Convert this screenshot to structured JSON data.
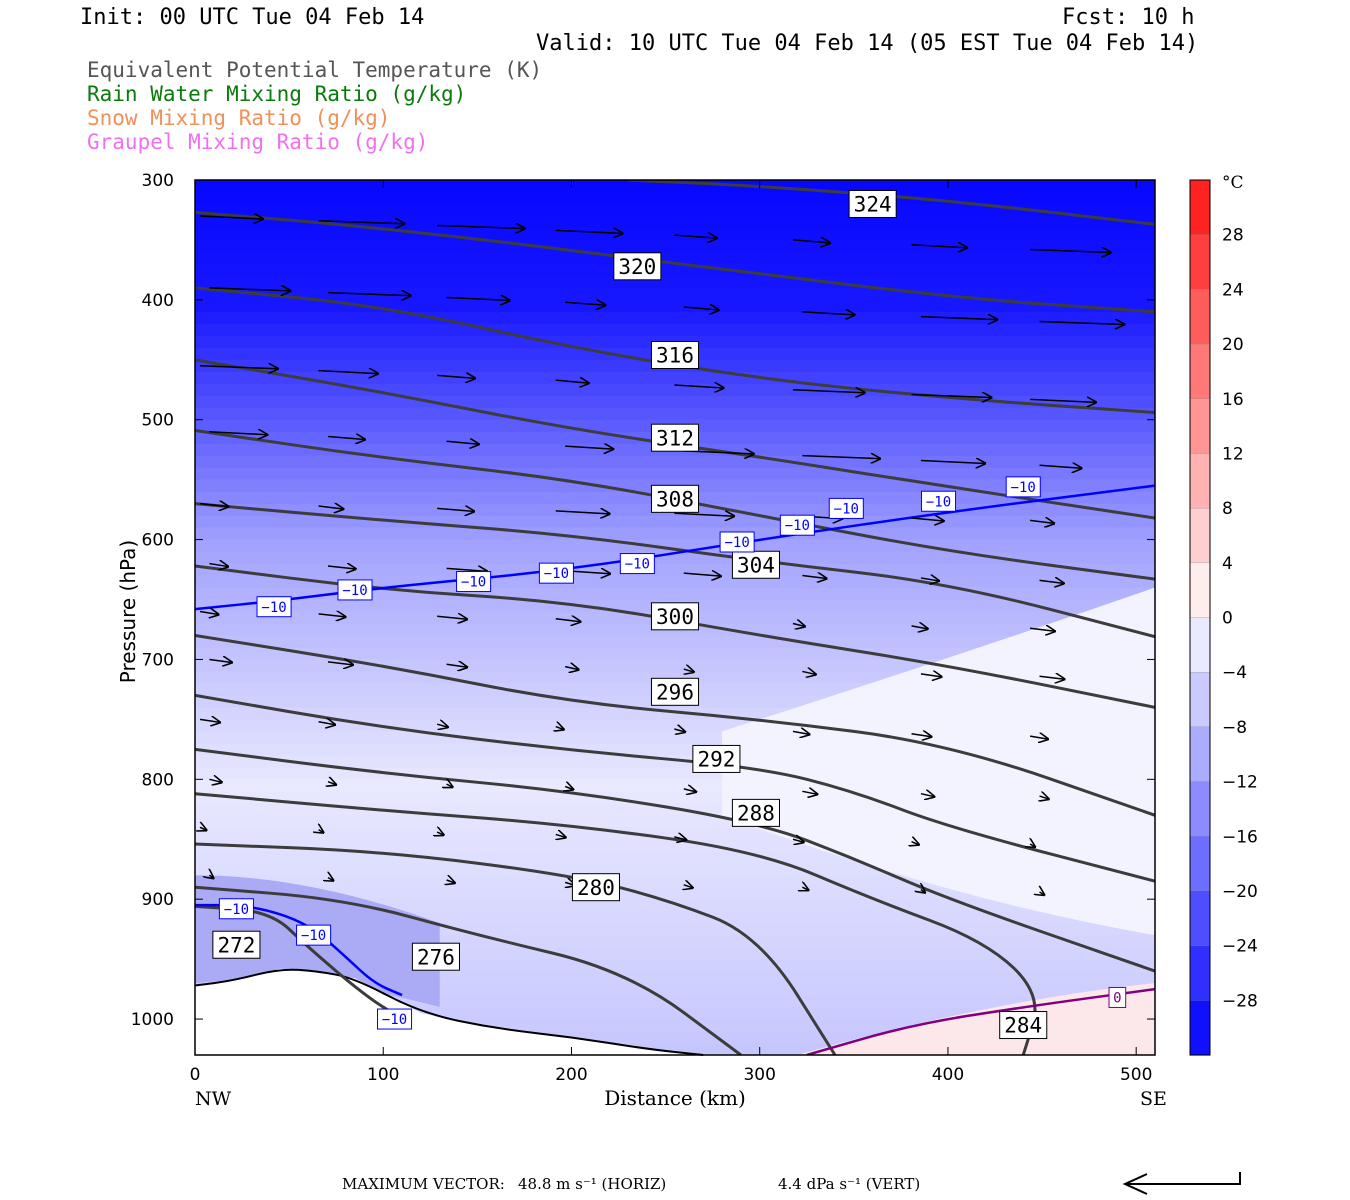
{
  "header": {
    "init": "Init: 00 UTC Tue 04 Feb 14",
    "fcst": "Fcst:   10 h",
    "valid": "Valid: 10 UTC Tue 04 Feb 14 (05 EST Tue 04 Feb 14)"
  },
  "fields": [
    {
      "label": "Equivalent Potential Temperature (K)",
      "color": "#555555"
    },
    {
      "label": "Rain Water Mixing Ratio (g/kg)",
      "color": "#0a7a0a"
    },
    {
      "label": "Snow Mixing Ratio (g/kg)",
      "color": "#f0905a"
    },
    {
      "label": "Graupel Mixing Ratio (g/kg)",
      "color": "#f070f0"
    }
  ],
  "chart_data": {
    "type": "cross-section",
    "xlabel": "Distance (km)",
    "ylabel": "Pressure (hPa)",
    "xlim": [
      0,
      510
    ],
    "ylim": [
      1030,
      300
    ],
    "y_scale": "pressure (inverted)",
    "xticks": [
      0,
      100,
      200,
      300,
      400,
      500
    ],
    "yticks": [
      300,
      400,
      500,
      600,
      700,
      800,
      900,
      1000
    ],
    "left_end_label": "NW",
    "right_end_label": "SE",
    "colorbar": {
      "unit": "°C",
      "tick_labels": [
        "28",
        "24",
        "20",
        "16",
        "12",
        "8",
        "4",
        "0",
        "−4",
        "−8",
        "−12",
        "−16",
        "−20",
        "−24",
        "−28"
      ],
      "range": [
        -32,
        32
      ],
      "step": 4
    },
    "theta_e_contours": [
      {
        "value": 324,
        "label": "324",
        "points": [
          [
            230,
            300
          ],
          [
            300,
            305
          ],
          [
            400,
            317
          ],
          [
            510,
            337
          ]
        ],
        "label_at": [
          360,
          320
        ]
      },
      {
        "value": 320,
        "label": "320",
        "points": [
          [
            0,
            327
          ],
          [
            100,
            340
          ],
          [
            250,
            368
          ],
          [
            400,
            398
          ],
          [
            510,
            410
          ]
        ],
        "label_at": [
          235,
          372
        ]
      },
      {
        "value": 316,
        "label": "316",
        "points": [
          [
            0,
            390
          ],
          [
            100,
            405
          ],
          [
            200,
            440
          ],
          [
            300,
            466
          ],
          [
            400,
            482
          ],
          [
            510,
            494
          ]
        ],
        "label_at": [
          255,
          446
        ]
      },
      {
        "value": 312,
        "label": "312",
        "points": [
          [
            0,
            450
          ],
          [
            100,
            477
          ],
          [
            200,
            508
          ],
          [
            300,
            531
          ],
          [
            400,
            556
          ],
          [
            510,
            582
          ]
        ],
        "label_at": [
          255,
          515
        ]
      },
      {
        "value": 308,
        "label": "308",
        "points": [
          [
            0,
            509
          ],
          [
            100,
            532
          ],
          [
            200,
            550
          ],
          [
            300,
            580
          ],
          [
            400,
            610
          ],
          [
            510,
            633
          ]
        ],
        "label_at": [
          255,
          566
        ]
      },
      {
        "value": 304,
        "label": "304",
        "points": [
          [
            0,
            570
          ],
          [
            100,
            584
          ],
          [
            200,
            596
          ],
          [
            300,
            618
          ],
          [
            400,
            636
          ],
          [
            510,
            681
          ]
        ],
        "label_at": [
          298,
          621
        ]
      },
      {
        "value": 300,
        "label": "300",
        "points": [
          [
            0,
            622
          ],
          [
            100,
            642
          ],
          [
            200,
            652
          ],
          [
            300,
            680
          ],
          [
            400,
            705
          ],
          [
            510,
            740
          ]
        ],
        "label_at": [
          255,
          664
        ]
      },
      {
        "value": 296,
        "label": "296",
        "points": [
          [
            0,
            680
          ],
          [
            100,
            705
          ],
          [
            200,
            736
          ],
          [
            300,
            750
          ],
          [
            400,
            770
          ],
          [
            510,
            830
          ]
        ],
        "label_at": [
          255,
          727
        ]
      },
      {
        "value": 292,
        "label": "292",
        "points": [
          [
            0,
            730
          ],
          [
            100,
            757
          ],
          [
            200,
            776
          ],
          [
            300,
            790
          ],
          [
            350,
            810
          ],
          [
            400,
            840
          ],
          [
            510,
            885
          ]
        ],
        "label_at": [
          277,
          783
        ]
      },
      {
        "value": 288,
        "label": "288",
        "points": [
          [
            0,
            775
          ],
          [
            100,
            795
          ],
          [
            200,
            810
          ],
          [
            300,
            836
          ],
          [
            350,
            866
          ],
          [
            400,
            900
          ],
          [
            510,
            960
          ]
        ],
        "label_at": [
          298,
          828
        ]
      },
      {
        "value": 284,
        "label": "284",
        "points": [
          [
            0,
            812
          ],
          [
            100,
            826
          ],
          [
            200,
            838
          ],
          [
            300,
            860
          ],
          [
            360,
            900
          ],
          [
            420,
            935
          ],
          [
            450,
            980
          ],
          [
            440,
            1030
          ]
        ],
        "label_at": [
          440,
          1005
        ]
      },
      {
        "value": 280,
        "label": "280",
        "points": [
          [
            0,
            854
          ],
          [
            100,
            860
          ],
          [
            200,
            880
          ],
          [
            250,
            900
          ],
          [
            300,
            930
          ],
          [
            340,
            1030
          ]
        ],
        "label_at": [
          213,
          890
        ]
      },
      {
        "value": 276,
        "label": "276",
        "points": [
          [
            0,
            890
          ],
          [
            80,
            900
          ],
          [
            150,
            930
          ],
          [
            230,
            960
          ],
          [
            290,
            1030
          ]
        ],
        "label_at": [
          128,
          948
        ]
      },
      {
        "value": 272,
        "label": "272",
        "points": [
          [
            0,
            906
          ],
          [
            40,
            910
          ],
          [
            60,
            940
          ],
          [
            90,
            980
          ],
          [
            110,
            1000
          ]
        ],
        "label_at": [
          22,
          938
        ]
      }
    ],
    "temperature_contours": [
      {
        "value": -10,
        "label": "−10",
        "color": "#0000ff",
        "points": [
          [
            0,
            658
          ],
          [
            50,
            650
          ],
          [
            100,
            640
          ],
          [
            200,
            625
          ],
          [
            300,
            600
          ],
          [
            400,
            577
          ],
          [
            510,
            555
          ]
        ],
        "label_positions": [
          [
            42,
            656
          ],
          [
            85,
            642
          ],
          [
            148,
            635
          ],
          [
            192,
            628
          ],
          [
            235,
            620
          ],
          [
            288,
            602
          ],
          [
            320,
            588
          ],
          [
            346,
            574
          ],
          [
            395,
            568
          ],
          [
            440,
            556
          ]
        ]
      },
      {
        "value": -10,
        "label": "−10",
        "color": "#0000ff",
        "points": [
          [
            0,
            905
          ],
          [
            30,
            905
          ],
          [
            60,
            920
          ],
          [
            80,
            948
          ],
          [
            95,
            970
          ],
          [
            110,
            980
          ]
        ],
        "label_positions": [
          [
            22,
            908
          ],
          [
            63,
            930
          ],
          [
            106,
            1000
          ]
        ]
      },
      {
        "value": 0,
        "label": "0",
        "color": "#800080",
        "points": [
          [
            325,
            1030
          ],
          [
            380,
            1005
          ],
          [
            440,
            990
          ],
          [
            510,
            975
          ]
        ],
        "label_positions": [
          [
            490,
            982
          ]
        ]
      }
    ],
    "wind_vectors_note": "in-plane wind vectors (horizontal + vertical components)",
    "max_vector": {
      "label": "MAXIMUM VECTOR:",
      "horiz": "48.8 m s⁻¹ (HORIZ)",
      "vert": "4.4 dPa s⁻¹ (VERT)"
    }
  }
}
